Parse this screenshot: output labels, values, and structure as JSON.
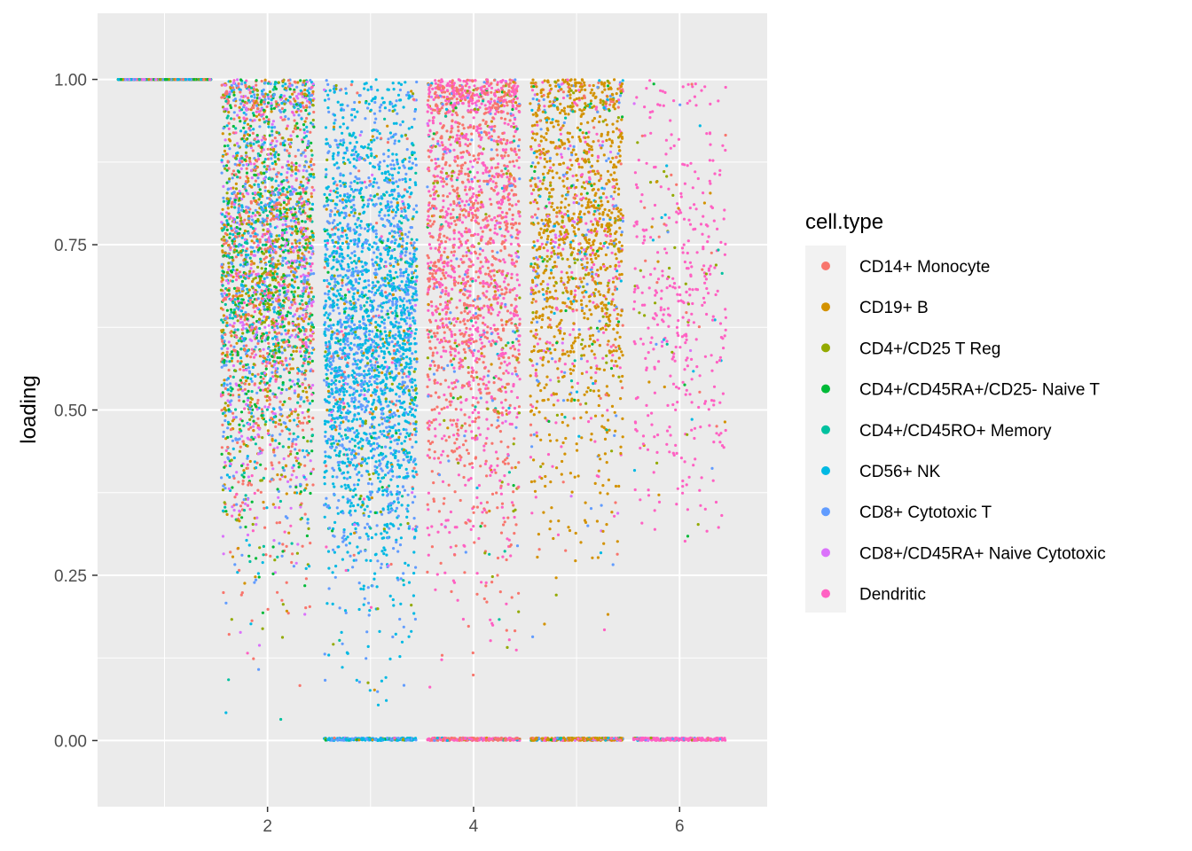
{
  "chart_data": {
    "type": "scatter",
    "title": "",
    "xlabel": "",
    "ylabel": "loading",
    "xlim": [
      0.35,
      6.85
    ],
    "ylim": [
      -0.1,
      1.1
    ],
    "x_ticks": [
      2,
      4,
      6
    ],
    "x_tick_labels": [
      "2",
      "4",
      "6"
    ],
    "y_ticks": [
      0.0,
      0.25,
      0.5,
      0.75,
      1.0
    ],
    "y_tick_labels": [
      "0.00",
      "0.25",
      "0.50",
      "0.75",
      "1.00"
    ],
    "grid": true,
    "jitter_width": 0.45,
    "panel_background": "#ebebeb",
    "legend": {
      "title": "cell.type",
      "position": "right"
    },
    "series": [
      {
        "name": "CD14+ Monocyte",
        "color": "#F8766D"
      },
      {
        "name": "CD19+ B",
        "color": "#D39200"
      },
      {
        "name": "CD4+/CD25 T Reg",
        "color": "#93AA00"
      },
      {
        "name": "CD4+/CD45RA+/CD25- Naive T",
        "color": "#00BA38"
      },
      {
        "name": "CD4+/CD45RO+ Memory",
        "color": "#00C19F"
      },
      {
        "name": "CD56+ NK",
        "color": "#00B9E3"
      },
      {
        "name": "CD8+ Cytotoxic T",
        "color": "#619CFF"
      },
      {
        "name": "CD8+/CD45RA+ Naive Cytotoxic",
        "color": "#DB72FB"
      },
      {
        "name": "Dendritic",
        "color": "#FF61C3"
      }
    ],
    "groups": [
      {
        "x": 1,
        "n": 1200,
        "mix": [
          0.1,
          0.1,
          0.1,
          0.1,
          0.1,
          0.15,
          0.15,
          0.1,
          0.1
        ],
        "mean": 1.0,
        "sd": 0.0,
        "min": 1.0,
        "max": 1.0,
        "zero_n": 0
      },
      {
        "x": 2,
        "n": 3200,
        "mix": [
          0.2,
          0.12,
          0.1,
          0.12,
          0.08,
          0.08,
          0.14,
          0.12,
          0.04
        ],
        "mean": 0.7,
        "sd": 0.2,
        "min": 0.02,
        "max": 1.0,
        "zero_n": 0
      },
      {
        "x": 3,
        "n": 2800,
        "mix": [
          0.02,
          0.02,
          0.03,
          0.02,
          0.03,
          0.5,
          0.36,
          0.01,
          0.01
        ],
        "mean": 0.62,
        "sd": 0.19,
        "min": 0.05,
        "max": 1.0,
        "zero_n": 260
      },
      {
        "x": 4,
        "n": 2200,
        "mix": [
          0.46,
          0.02,
          0.03,
          0.01,
          0.01,
          0.01,
          0.03,
          0.01,
          0.42
        ],
        "mean": 0.75,
        "sd": 0.23,
        "min": 0.05,
        "max": 1.0,
        "zero_n": 300
      },
      {
        "x": 5,
        "n": 1600,
        "mix": [
          0.06,
          0.62,
          0.04,
          0.02,
          0.02,
          0.03,
          0.06,
          0.02,
          0.13
        ],
        "mean": 0.76,
        "sd": 0.19,
        "min": 0.1,
        "max": 1.0,
        "zero_n": 300
      },
      {
        "x": 6,
        "n": 450,
        "mix": [
          0.04,
          0.02,
          0.05,
          0.01,
          0.01,
          0.02,
          0.02,
          0.01,
          0.82
        ],
        "mean": 0.68,
        "sd": 0.17,
        "min": 0.3,
        "max": 1.0,
        "zero_n": 260
      }
    ]
  }
}
